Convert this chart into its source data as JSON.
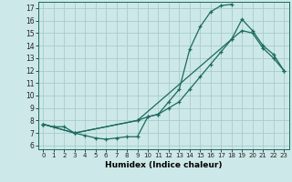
{
  "xlabel": "Humidex (Indice chaleur)",
  "bg_color": "#cde8e8",
  "line_color": "#1a6b60",
  "grid_color": "#aacccc",
  "xlim": [
    -0.5,
    23.5
  ],
  "ylim": [
    5.7,
    17.5
  ],
  "xticks": [
    0,
    1,
    2,
    3,
    4,
    5,
    6,
    7,
    8,
    9,
    10,
    11,
    12,
    13,
    14,
    15,
    16,
    17,
    18,
    19,
    20,
    21,
    22,
    23
  ],
  "yticks": [
    6,
    7,
    8,
    9,
    10,
    11,
    12,
    13,
    14,
    15,
    16,
    17
  ],
  "line1_x": [
    0,
    1,
    2,
    3,
    4,
    5,
    6,
    7,
    8,
    9,
    10,
    11,
    12,
    13,
    14,
    15,
    16,
    17,
    18
  ],
  "line1_y": [
    7.7,
    7.5,
    7.5,
    7.0,
    6.8,
    6.6,
    6.5,
    6.6,
    6.7,
    6.7,
    8.3,
    8.5,
    9.5,
    10.5,
    13.7,
    15.5,
    16.7,
    17.2,
    17.3
  ],
  "line2_x": [
    0,
    3,
    9,
    10,
    11,
    12,
    13,
    14,
    15,
    16,
    17,
    18,
    19,
    20,
    21,
    22,
    23
  ],
  "line2_y": [
    7.7,
    7.0,
    8.0,
    8.3,
    8.5,
    9.0,
    9.5,
    10.5,
    11.5,
    12.5,
    13.5,
    14.5,
    15.2,
    15.0,
    13.8,
    13.0,
    12.0
  ],
  "line3_x": [
    0,
    3,
    9,
    18,
    19,
    20,
    21,
    22,
    23
  ],
  "line3_y": [
    7.7,
    7.0,
    8.0,
    14.5,
    16.1,
    15.2,
    14.0,
    13.3,
    12.0
  ]
}
